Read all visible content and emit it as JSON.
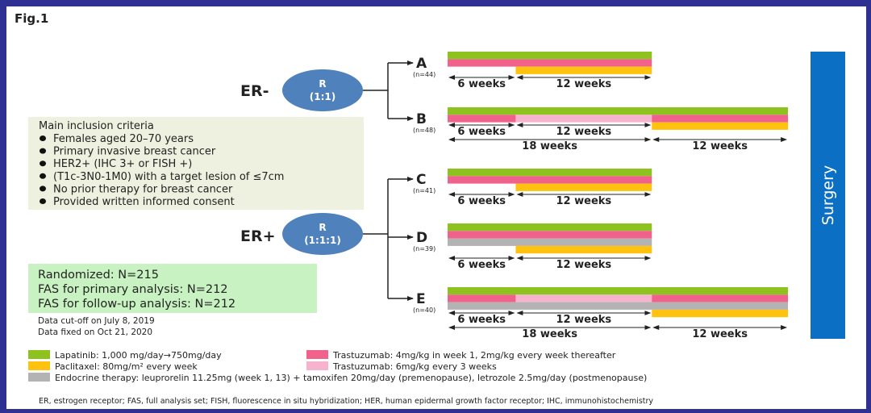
{
  "figure_label": "Fig.1",
  "strata": [
    {
      "label": "ER-",
      "randomization": "R",
      "ratio": "(1:1)"
    },
    {
      "label": "ER+",
      "randomization": "R",
      "ratio": "(1:1:1)"
    }
  ],
  "inclusion": {
    "title": "Main inclusion criteria",
    "items": [
      "Females aged 20–70 years",
      "Primary invasive breast cancer",
      "HER2+ (IHC 3+ or FISH +)",
      "(T1c-3N0-1M0) with a target lesion of ≤7cm",
      "No prior therapy for breast cancer",
      "Provided written informed consent"
    ]
  },
  "numbers": {
    "lines": [
      "Randomized:  N=215",
      "FAS for primary analysis: N=212",
      "FAS for follow-up analysis: N=212"
    ],
    "dates": [
      "Data cut-off on July 8, 2019",
      "Data fixed on Oct 21, 2020"
    ]
  },
  "colors": {
    "lapatinib": "#8dc21f",
    "trastuzumab_weekly": "#f0628b",
    "trastuzumab_3w": "#f7b3cd",
    "paclitaxel": "#ffc20e",
    "endocrine": "#b3b3b3",
    "randomization_circle": "#4f81bd",
    "surgery": "#0b70c4",
    "inclusion_bg": "#eef0e0",
    "numbers_bg": "#c9f2c2"
  },
  "arms": [
    {
      "name": "A",
      "n": "(n=44)",
      "rows": [
        [
          {
            "drug": "lapatinib",
            "from": 0,
            "to": 18
          }
        ],
        [
          {
            "drug": "trastuzumab_weekly",
            "from": 0,
            "to": 18
          }
        ],
        [
          {
            "drug": "paclitaxel",
            "from": 6,
            "to": 18
          }
        ]
      ],
      "spans": [
        {
          "from": 0,
          "to": 6,
          "label": "6 weeks",
          "level": 0
        },
        {
          "from": 6,
          "to": 18,
          "label": "12 weeks",
          "level": 0
        }
      ]
    },
    {
      "name": "B",
      "n": "(n=48)",
      "rows": [
        [
          {
            "drug": "lapatinib",
            "from": 0,
            "to": 30
          }
        ],
        [
          {
            "drug": "trastuzumab_weekly",
            "from": 0,
            "to": 6
          },
          {
            "drug": "trastuzumab_3w",
            "from": 6,
            "to": 18
          },
          {
            "drug": "trastuzumab_weekly",
            "from": 18,
            "to": 30
          }
        ],
        [
          {
            "drug": "paclitaxel",
            "from": 18,
            "to": 30
          }
        ]
      ],
      "spans": [
        {
          "from": 0,
          "to": 6,
          "label": "6 weeks",
          "level": 0
        },
        {
          "from": 6,
          "to": 18,
          "label": "12 weeks",
          "level": 0
        },
        {
          "from": 0,
          "to": 18,
          "label": "18 weeks",
          "level": 1
        },
        {
          "from": 18,
          "to": 30,
          "label": "12 weeks",
          "level": 1
        }
      ]
    },
    {
      "name": "C",
      "n": "(n=41)",
      "rows": [
        [
          {
            "drug": "lapatinib",
            "from": 0,
            "to": 18
          }
        ],
        [
          {
            "drug": "trastuzumab_weekly",
            "from": 0,
            "to": 18
          }
        ],
        [
          {
            "drug": "paclitaxel",
            "from": 6,
            "to": 18
          }
        ]
      ],
      "spans": [
        {
          "from": 0,
          "to": 6,
          "label": "6 weeks",
          "level": 0
        },
        {
          "from": 6,
          "to": 18,
          "label": "12 weeks",
          "level": 0
        }
      ]
    },
    {
      "name": "D",
      "n": "(n=39)",
      "rows": [
        [
          {
            "drug": "lapatinib",
            "from": 0,
            "to": 18
          }
        ],
        [
          {
            "drug": "trastuzumab_weekly",
            "from": 0,
            "to": 18
          }
        ],
        [
          {
            "drug": "endocrine",
            "from": 0,
            "to": 18
          }
        ],
        [
          {
            "drug": "paclitaxel",
            "from": 6,
            "to": 18
          }
        ]
      ],
      "spans": [
        {
          "from": 0,
          "to": 6,
          "label": "6 weeks",
          "level": 0
        },
        {
          "from": 6,
          "to": 18,
          "label": "12 weeks",
          "level": 0
        }
      ]
    },
    {
      "name": "E",
      "n": "(n=40)",
      "rows": [
        [
          {
            "drug": "lapatinib",
            "from": 0,
            "to": 30
          }
        ],
        [
          {
            "drug": "trastuzumab_weekly",
            "from": 0,
            "to": 6
          },
          {
            "drug": "trastuzumab_3w",
            "from": 6,
            "to": 18
          },
          {
            "drug": "trastuzumab_weekly",
            "from": 18,
            "to": 30
          }
        ],
        [
          {
            "drug": "endocrine",
            "from": 0,
            "to": 30
          }
        ],
        [
          {
            "drug": "paclitaxel",
            "from": 18,
            "to": 30
          }
        ]
      ],
      "spans": [
        {
          "from": 0,
          "to": 6,
          "label": "6 weeks",
          "level": 0
        },
        {
          "from": 6,
          "to": 18,
          "label": "12 weeks",
          "level": 0
        },
        {
          "from": 0,
          "to": 18,
          "label": "18 weeks",
          "level": 1
        },
        {
          "from": 18,
          "to": 30,
          "label": "12 weeks",
          "level": 1
        }
      ]
    }
  ],
  "surgery_label": "Surgery",
  "legend": [
    {
      "key": "lapatinib",
      "label": "Lapatinib: 1,000 mg/day→750mg/day"
    },
    {
      "key": "trastuzumab_weekly",
      "label": "Trastuzumab: 4mg/kg in week 1, 2mg/kg every week thereafter"
    },
    {
      "key": "paclitaxel",
      "label": "Paclitaxel: 80mg/m² every week"
    },
    {
      "key": "trastuzumab_3w",
      "label": "Trastuzumab: 6mg/kg every 3 weeks"
    },
    {
      "key": "endocrine",
      "label": "Endocrine therapy: leuprorelin 11.25mg (week 1, 13) + tamoxifen 20mg/day (premenopause), letrozole 2.5mg/day (postmenopause)"
    }
  ],
  "footnote": "ER, estrogen receptor; FAS, full analysis set; FISH, fluorescence in situ hybridization; HER, human epidermal growth factor receptor; IHC, immunohistochemistry"
}
